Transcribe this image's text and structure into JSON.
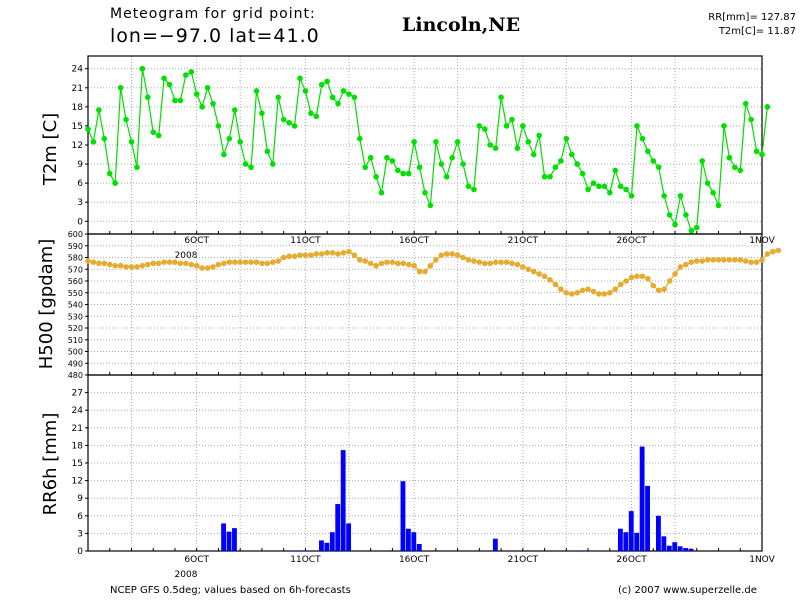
{
  "header": {
    "line1": "Meteogram for grid point:",
    "line2": "lon=−97.0 lat=41.0",
    "city": "Lincoln,NE",
    "stat_rr": "RR[mm]= 127.87",
    "stat_t2m": "T2m[C]= 11.87"
  },
  "footer": {
    "source": "NCEP GFS 0.5deg; values based on 6h-forecasts",
    "copyright": "(c) 2007 www.superzelle.de"
  },
  "colors": {
    "t2m": "#00e000",
    "h500": "#e6ac32",
    "rr6h": "#0000ff",
    "grid": "#aaaaaa"
  },
  "chart_data": [
    {
      "type": "line",
      "ylabel": "T2m [C]",
      "x_start_day": 1,
      "x_step_days": 0.25,
      "ylim": [
        -2,
        26
      ],
      "yticks": [
        0,
        3,
        6,
        9,
        12,
        15,
        18,
        21,
        24
      ],
      "xticks": [
        "6OCT",
        "11OCT",
        "16OCT",
        "21OCT",
        "26OCT",
        "1NOV"
      ],
      "xtick_year": "2008",
      "grid": true,
      "series": [
        {
          "values": [
            14.5,
            12.5,
            17.5,
            13,
            7.5,
            6,
            21,
            16,
            12.5,
            8.5,
            24,
            19.5,
            14,
            13.5,
            22.5,
            21.5,
            19,
            19,
            23,
            23.5,
            20,
            18,
            21,
            18.5,
            15,
            10.5,
            13,
            17.5,
            12.5,
            9,
            8.5,
            20.5,
            17,
            11,
            9,
            19.5,
            16,
            15.5,
            15,
            22.5,
            20.5,
            17,
            16.5,
            21.5,
            22,
            19.5,
            18.5,
            20.5,
            20,
            19.5,
            13,
            8.5,
            10,
            7,
            4.5,
            10,
            9.5,
            8,
            7.5,
            7.5,
            12.5,
            8.5,
            4.5,
            2.5,
            12.5,
            9,
            7,
            10,
            12.5,
            9,
            5.5,
            5,
            15,
            14.5,
            12,
            11.5,
            19.5,
            15,
            16,
            11.5,
            15,
            12.5,
            10.5,
            13.5,
            7,
            7,
            8.5,
            9.5,
            13,
            10.5,
            9,
            7.5,
            5,
            6,
            5.5,
            5.5,
            4.5,
            8,
            5.5,
            5,
            4,
            15,
            13,
            11,
            9.5,
            8.5,
            4,
            1,
            -0.5,
            4,
            1,
            -1.5,
            -1,
            9.5,
            6,
            4.5,
            2.5,
            15,
            10,
            8.5,
            8,
            18.5,
            16,
            11,
            10.5,
            18
          ]
        }
      ]
    },
    {
      "type": "line",
      "ylabel": "H500 [gpdam]",
      "x_start_day": 1,
      "x_step_days": 0.25,
      "ylim": [
        480,
        600
      ],
      "yticks": [
        480,
        490,
        500,
        510,
        520,
        530,
        540,
        550,
        560,
        570,
        580,
        590,
        600
      ],
      "grid": true,
      "series": [
        {
          "values": [
            577,
            576,
            575,
            575,
            574,
            573,
            573,
            572,
            572,
            572,
            573,
            574,
            575,
            575,
            576,
            576,
            576,
            575,
            575,
            574,
            573,
            571,
            571,
            572,
            574,
            575,
            576,
            576,
            576,
            576,
            576,
            576,
            575,
            575,
            576,
            577,
            580,
            581,
            581,
            582,
            582,
            582,
            583,
            583,
            584,
            584,
            583,
            584,
            585,
            582,
            578,
            577,
            575,
            573,
            575,
            576,
            576,
            575,
            575,
            574,
            573,
            568,
            568,
            573,
            578,
            582,
            583,
            583,
            582,
            580,
            578,
            577,
            576,
            575,
            575,
            576,
            576,
            576,
            575,
            574,
            572,
            570,
            568,
            566,
            564,
            561,
            557,
            553,
            550,
            549,
            550,
            552,
            553,
            551,
            549,
            549,
            550,
            553,
            557,
            560,
            563,
            564,
            564,
            562,
            556,
            552,
            553,
            560,
            566,
            572,
            574,
            576,
            577,
            577,
            578,
            578,
            578,
            578,
            578,
            578,
            578,
            577,
            576,
            576,
            578,
            583,
            585,
            586
          ]
        }
      ]
    },
    {
      "type": "bar",
      "ylabel": "RR6h [mm]",
      "x_start_day": 1,
      "x_step_days": 0.25,
      "ylim": [
        0,
        30
      ],
      "yticks": [
        0,
        3,
        6,
        9,
        12,
        15,
        18,
        21,
        24,
        27
      ],
      "xticks": [
        "6OCT",
        "11OCT",
        "16OCT",
        "21OCT",
        "26OCT",
        "1NOV"
      ],
      "xtick_year": "2008",
      "grid": true,
      "series": [
        {
          "values": [
            0,
            0,
            0,
            0,
            0,
            0,
            0,
            0,
            0,
            0,
            0,
            0,
            0,
            0,
            0,
            0,
            0,
            0,
            0,
            0,
            0,
            0,
            0,
            0,
            0,
            4.7,
            3.3,
            3.9,
            0,
            0,
            0,
            0,
            0,
            0,
            0,
            0,
            0,
            0,
            0.1,
            0.1,
            0.1,
            0,
            0,
            1.8,
            1.4,
            3.2,
            8,
            17.2,
            4.7,
            0,
            0,
            0,
            0,
            0,
            0,
            0,
            0,
            0,
            11.9,
            3.8,
            3.2,
            1.2,
            0,
            0,
            0,
            0,
            0,
            0,
            0,
            0,
            0,
            0,
            0,
            0,
            0,
            2.1,
            0,
            0,
            0,
            0,
            0,
            0,
            0,
            0,
            0,
            0,
            0,
            0,
            0,
            0,
            0,
            0.1,
            0,
            0,
            0,
            0,
            0,
            0,
            3.8,
            3.2,
            6.8,
            3.1,
            17.8,
            11.1,
            0,
            6,
            2.5,
            0.9,
            1.5,
            0.8,
            0.5,
            0.4,
            0,
            0,
            0,
            0,
            0,
            0,
            0,
            0,
            0,
            0,
            0,
            0,
            0,
            0,
            0,
            0,
            0,
            0,
            0,
            0,
            0,
            0,
            0,
            0,
            0
          ]
        }
      ]
    }
  ]
}
